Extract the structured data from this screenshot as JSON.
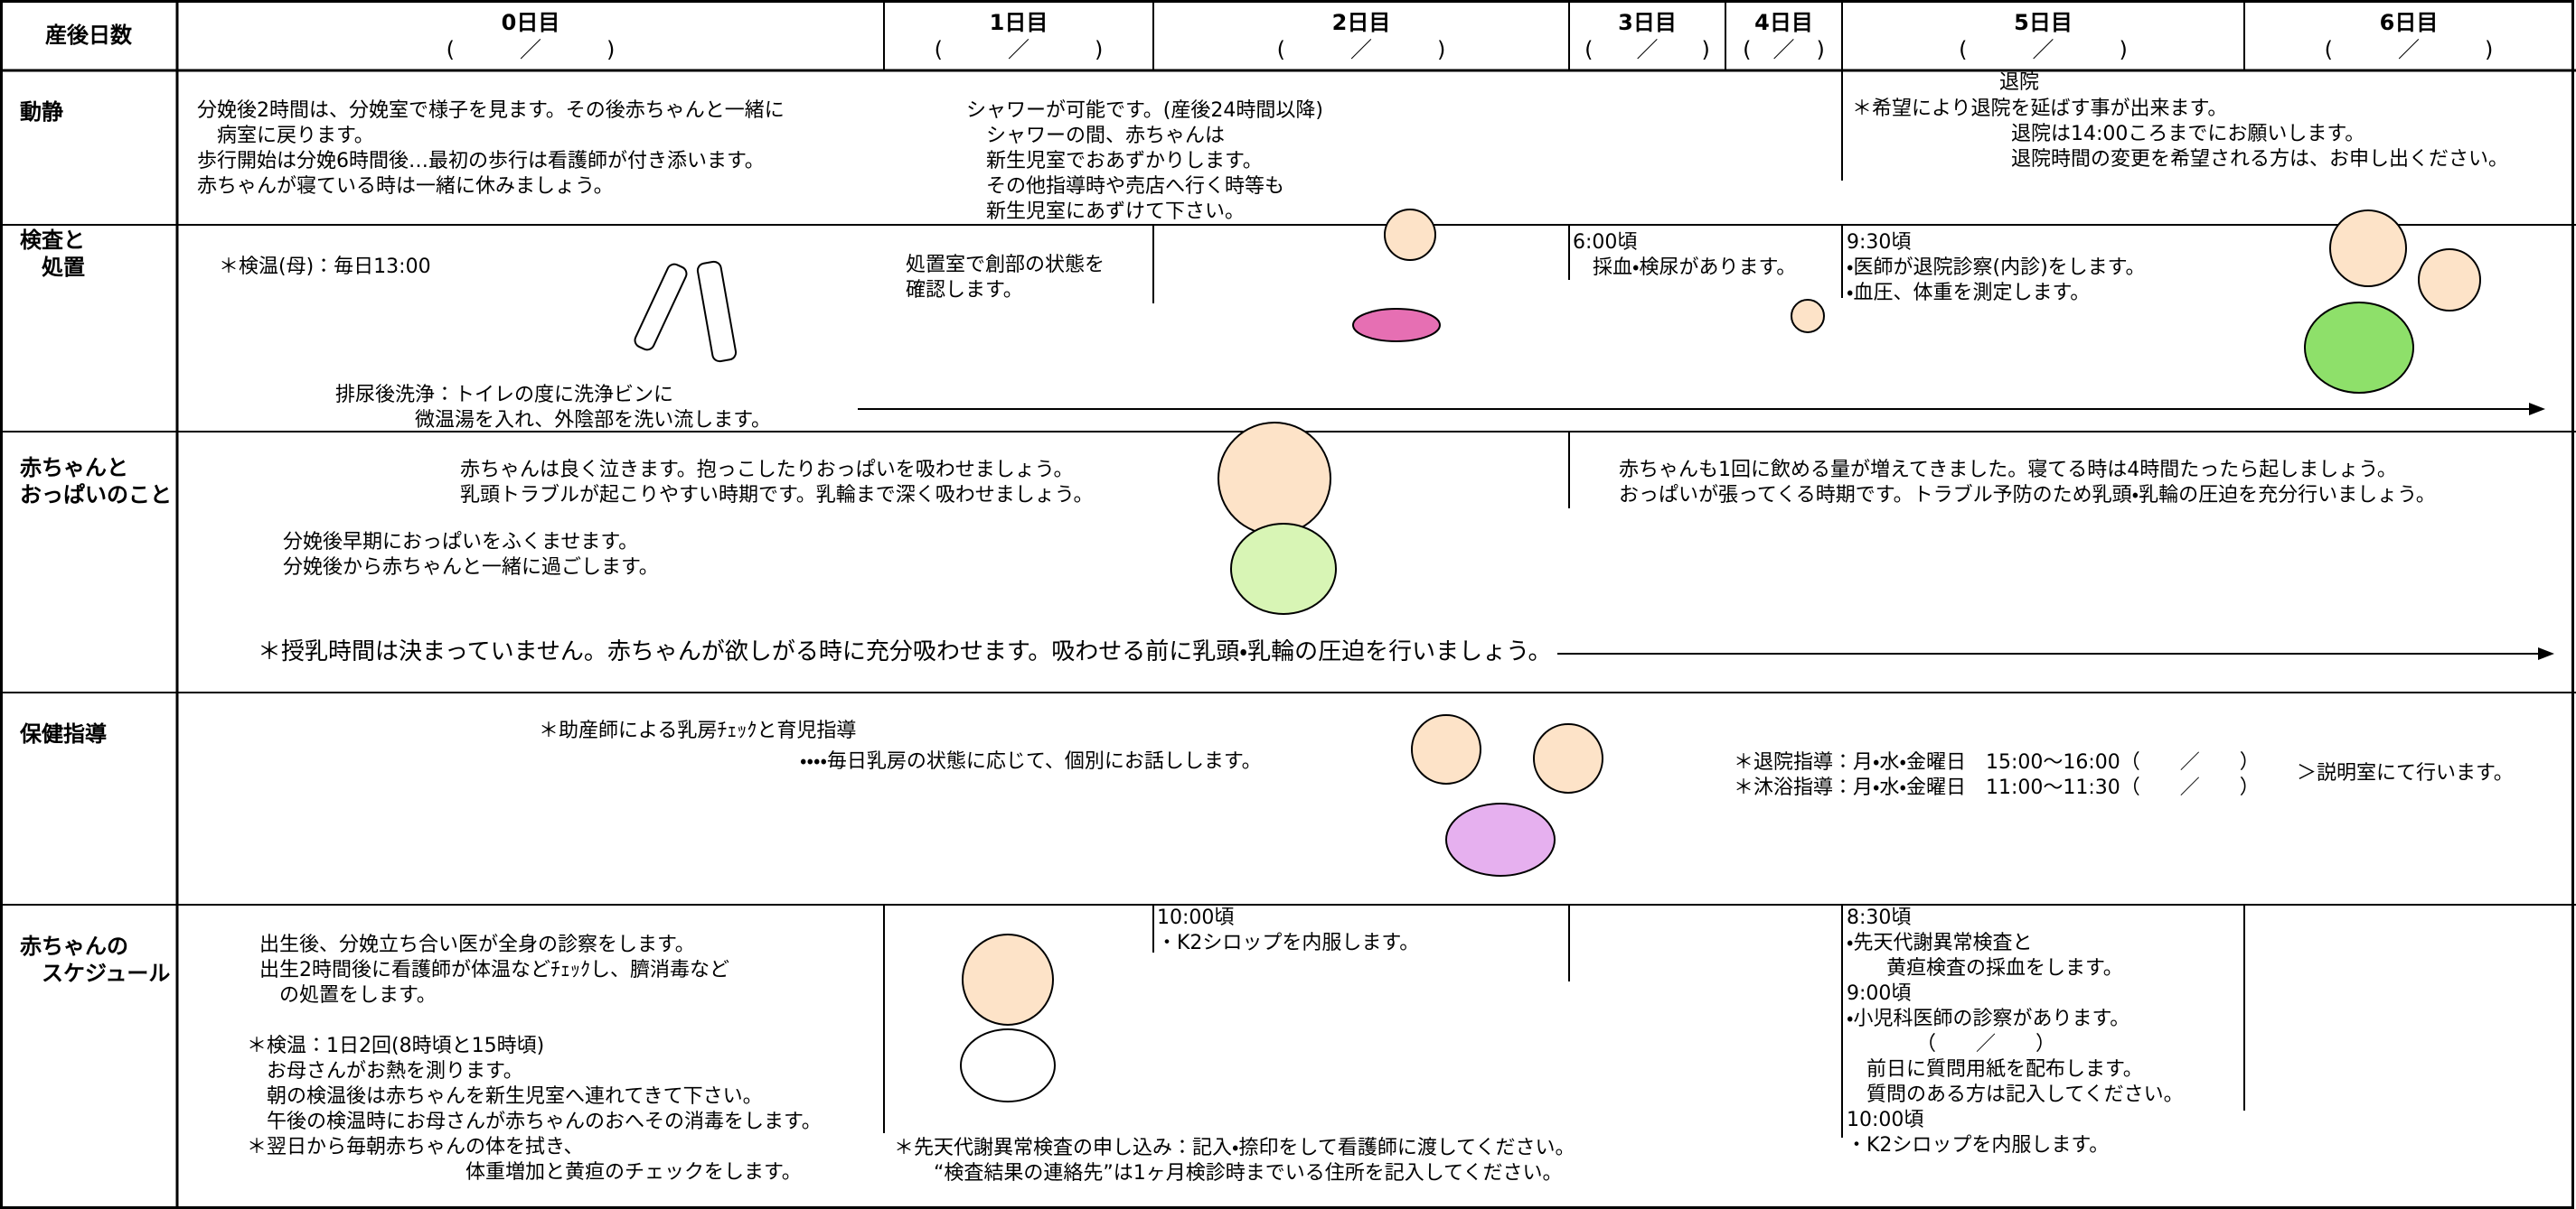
{
  "header": {
    "label": "産後日数",
    "days": [
      {
        "day": "0日目",
        "date": "(　　　／　　　)"
      },
      {
        "day": "1日目",
        "date": "(　　　／　　　)"
      },
      {
        "day": "2日目",
        "date": "(　　　／　　　)"
      },
      {
        "day": "3日目",
        "date": "(　　／　　)"
      },
      {
        "day": "4日目",
        "date": "(　／　)"
      },
      {
        "day": "5日目",
        "date": "(　　　／　　　)"
      },
      {
        "day": "6日目",
        "date": "(　　　／　　　)"
      }
    ]
  },
  "rows": [
    {
      "label": [
        "動静"
      ],
      "blocks": [
        [
          "分娩後2時間は、分娩室で様子を見ます。その後赤ちゃんと一緒に",
          "　病室に戻ります。",
          "歩行開始は分娩6時間後…最初の歩行は看護師が付き添います。",
          "赤ちゃんが寝ている時は一緒に休みましょう。"
        ],
        [
          "シャワーが可能です。(産後24時間以降)",
          "　シャワーの間、赤ちゃんは",
          "　新生児室でおあずかりします。",
          "　その他指導時や売店へ行く時等も",
          "　新生児室にあずけて下さい。"
        ],
        [
          "退院"
        ],
        [
          "＊希望により退院を延ばす事が出来ます。",
          "　　　　　　　　退院は14:00ころまでにお願いします。",
          "　　　　　　　　退院時間の変更を希望される方は、お申し出ください。"
        ]
      ]
    },
    {
      "label": [
        "検査と",
        "　処置"
      ],
      "blocks": [
        [
          "＊検温(母)：毎日13:00"
        ],
        [
          "処置室で創部の状態を",
          "確認します。"
        ],
        [
          "6:00頃",
          "　採血・検尿があります。"
        ],
        [
          "9:30頃",
          "・医師が退院診察(内診)をします。",
          "・血圧、体重を測定します。"
        ],
        [
          "排尿後洗浄：トイレの度に洗浄ビンに",
          "　　　　微温湯を入れ、外陰部を洗い流します。"
        ]
      ]
    },
    {
      "label": [
        "赤ちゃんと",
        "おっぱいのこと"
      ],
      "blocks": [
        [
          "赤ちゃんは良く泣きます。抱っこしたりおっぱいを吸わせましょう。",
          "乳頭トラブルが起こりやすい時期です。乳輪まで深く吸わせましょう。"
        ],
        [
          "分娩後早期におっぱいをふくませます。",
          "分娩後から赤ちゃんと一緒に過ごします。"
        ],
        [
          "＊授乳時間は決まっていません。赤ちゃんが欲しがる時に充分吸わせます。吸わせる前に乳頭・乳輪の圧迫を行いましょう。"
        ],
        [
          "赤ちゃんも1回に飲める量が増えてきました。寝てる時は4時間たったら起しましょう。",
          "おっぱいが張ってくる時期です。トラブル予防のため乳頭・乳輪の圧迫を充分行いましょう。"
        ]
      ]
    },
    {
      "label": [
        "保健指導"
      ],
      "blocks": [
        [
          "＊助産師による乳房ﾁｪｯｸと育児指導"
        ],
        [
          "・・・・毎日乳房の状態に応じて、個別にお話しします。"
        ],
        [
          "＊退院指導：月・水・金曜日　15:00～16:00（　　／　　）",
          "＊沐浴指導：月・水・金曜日　11:00～11:30（　　／　　）"
        ],
        [
          "＞説明室にて行います。"
        ]
      ]
    },
    {
      "label": [
        "赤ちゃんの",
        "　スケジュール"
      ],
      "blocks": [
        [
          "出生後、分娩立ち合い医が全身の診察をします。",
          "出生2時間後に看護師が体温などﾁｪｯｸし、臍消毒など",
          "　の処置をします。"
        ],
        [
          "＊検温：1日2回(8時頃と15時頃)",
          "　お母さんがお熱を測ります。",
          "　朝の検温後は赤ちゃんを新生児室へ連れてきて下さい。",
          "　午後の検温時にお母さんが赤ちゃんのおへその消毒をします。",
          "＊翌日から毎朝赤ちゃんの体を拭き、",
          "　　　　　　　　　　　体重増加と黄疸のチェックをします。"
        ],
        [
          "10:00頃",
          "・K2シロップを内服します。"
        ],
        [
          "8:30頃",
          "・先天代謝異常検査と",
          "　　黄疸検査の採血をします。",
          "9:00頃",
          "・小児科医師の診察があります。",
          "　　　　（　　／　　）",
          "　前日に質問用紙を配布します。",
          "　質問のある方は記入してください。",
          "10:00頃",
          "・K2シロップを内服します。"
        ],
        [
          "＊先天代謝異常検査の申し込み：記入・捺印をして看護師に渡してください。",
          "　　“検査結果の連絡先”は1ヶ月検診時までいる住所を記入してください。"
        ]
      ]
    }
  ]
}
